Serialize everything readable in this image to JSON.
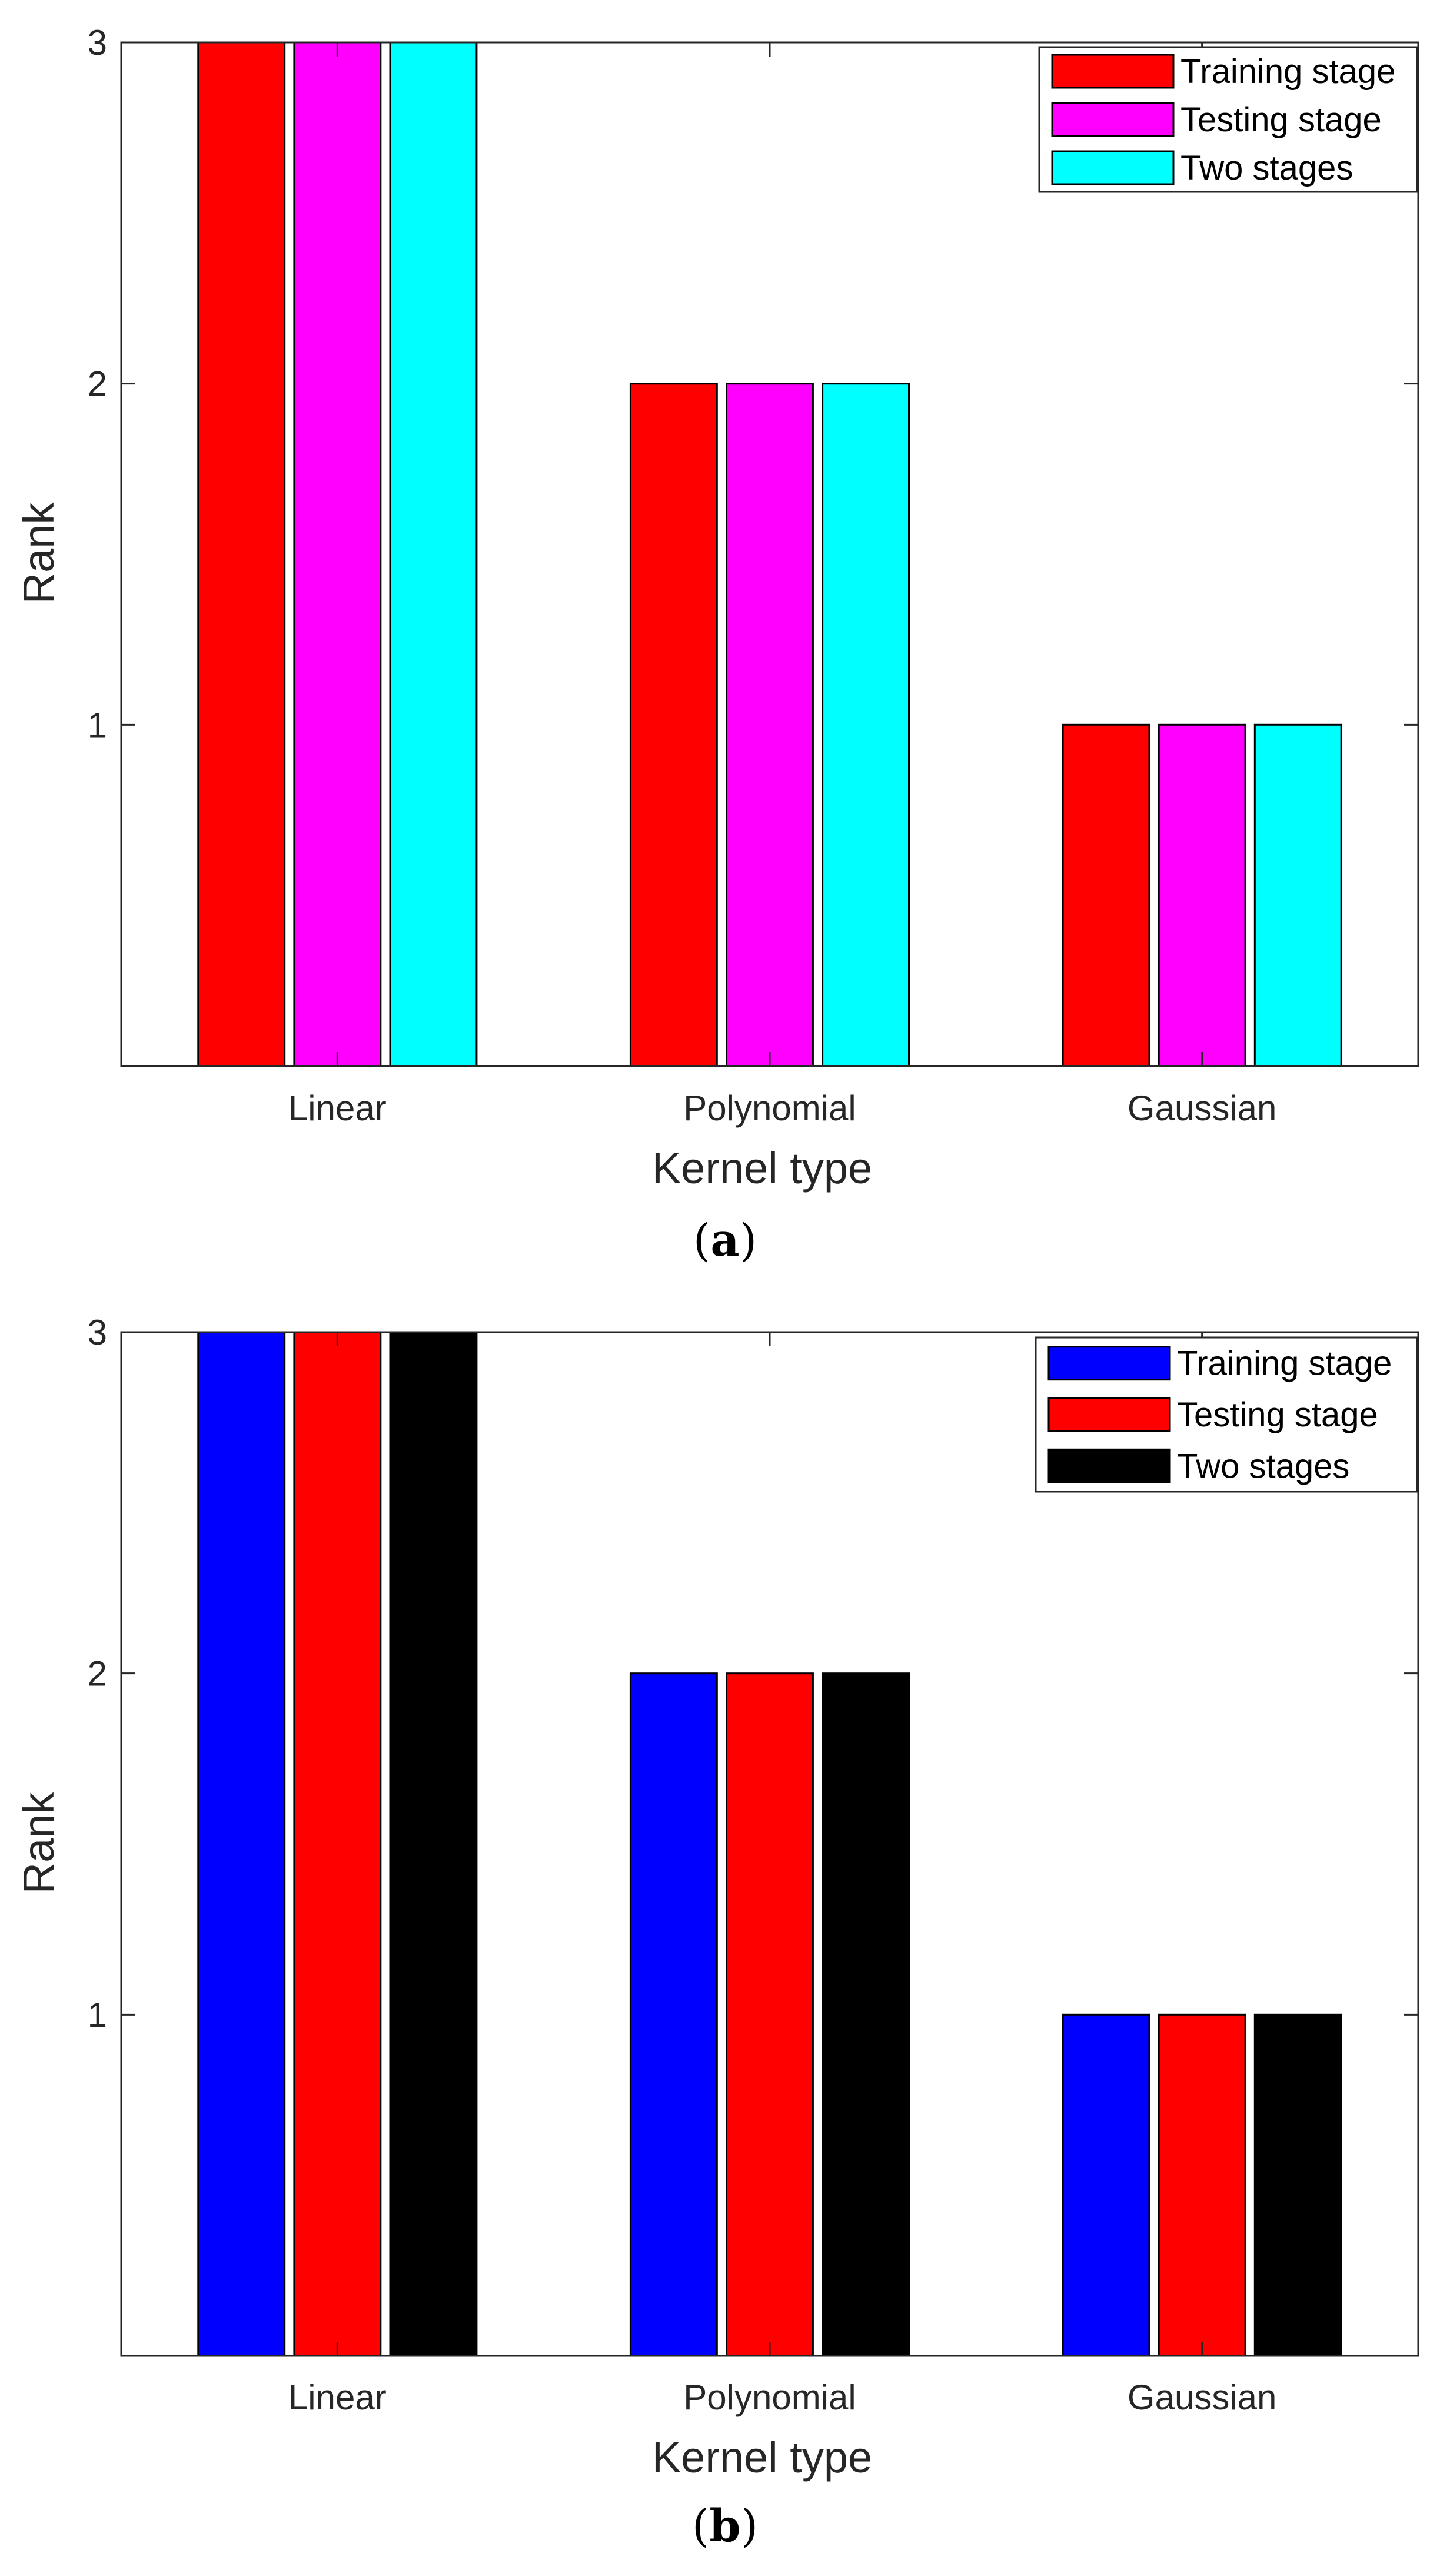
{
  "chart_data": [
    {
      "type": "bar",
      "panel_label": "a",
      "categories": [
        "Linear",
        "Polynomial",
        "Gaussian"
      ],
      "series": [
        {
          "name": "Training stage",
          "values": [
            3,
            2,
            1
          ],
          "color": "#ff0000"
        },
        {
          "name": "Testing stage",
          "values": [
            3,
            2,
            1
          ],
          "color": "#ff00ff"
        },
        {
          "name": "Two stages",
          "values": [
            3,
            2,
            1
          ],
          "color": "#00ffff"
        }
      ],
      "xlabel": "Kernel type",
      "ylabel": "Rank",
      "ylim": [
        0,
        3
      ],
      "yticks": [
        1,
        2,
        3
      ],
      "legend_position": "top-right",
      "grid": false
    },
    {
      "type": "bar",
      "panel_label": "b",
      "categories": [
        "Linear",
        "Polynomial",
        "Gaussian"
      ],
      "series": [
        {
          "name": "Training stage",
          "values": [
            3,
            2,
            1
          ],
          "color": "#0000ff"
        },
        {
          "name": "Testing stage",
          "values": [
            3,
            2,
            1
          ],
          "color": "#ff0000"
        },
        {
          "name": "Two stages",
          "values": [
            3,
            2,
            1
          ],
          "color": "#000000"
        }
      ],
      "xlabel": "Kernel type",
      "ylabel": "Rank",
      "ylim": [
        0,
        3
      ],
      "yticks": [
        1,
        2,
        3
      ],
      "legend_position": "top-right",
      "grid": false
    }
  ]
}
